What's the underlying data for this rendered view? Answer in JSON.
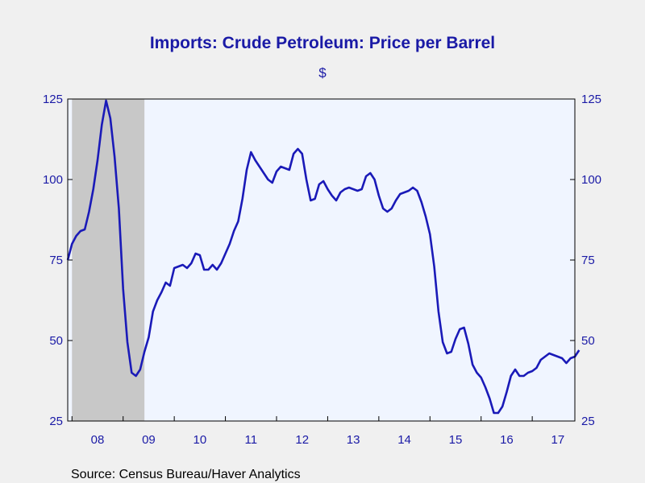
{
  "chart_data": {
    "type": "line",
    "title": "Imports: Crude Petroleum: Price per Barrel",
    "subtitle": "$",
    "source": "Source:  Census Bureau/Haver Analytics",
    "xlabel": "",
    "ylabel": "",
    "ylim": [
      25,
      125
    ],
    "yticks": [
      25,
      50,
      75,
      100,
      125
    ],
    "xlim": [
      "2007-12",
      "2017-11"
    ],
    "xticks": [
      {
        "label": "08",
        "x": "2008-07"
      },
      {
        "label": "09",
        "x": "2009-07"
      },
      {
        "label": "10",
        "x": "2010-07"
      },
      {
        "label": "11",
        "x": "2011-07"
      },
      {
        "label": "12",
        "x": "2012-07"
      },
      {
        "label": "13",
        "x": "2013-07"
      },
      {
        "label": "14",
        "x": "2014-07"
      },
      {
        "label": "15",
        "x": "2015-07"
      },
      {
        "label": "16",
        "x": "2016-07"
      },
      {
        "label": "17",
        "x": "2017-07"
      }
    ],
    "grid": false,
    "recession_shading": {
      "start": "2008-01",
      "end": "2009-06",
      "color": "#c8c8c8"
    },
    "colors": {
      "line": "#1a1ab8",
      "plot_bg": "#f0f5ff",
      "text": "#1a1aa6",
      "axis": "#000000"
    },
    "series": [
      {
        "start": "2007-12",
        "frequency": "monthly",
        "values": [
          75.0,
          80.0,
          82.5,
          84.0,
          84.5,
          90.0,
          97.0,
          106.0,
          117.0,
          124.5,
          119.0,
          107.0,
          91.0,
          66.0,
          49.5,
          40.0,
          39.0,
          41.0,
          46.5,
          51.0,
          59.0,
          62.5,
          65.0,
          68.0,
          67.0,
          72.5,
          73.0,
          73.5,
          72.5,
          74.0,
          77.0,
          76.5,
          72.0,
          72.0,
          73.5,
          72.0,
          74.0,
          77.0,
          80.0,
          84.0,
          87.0,
          94.0,
          103.0,
          108.5,
          106.0,
          104.0,
          102.0,
          100.0,
          99.0,
          102.5,
          104.0,
          103.5,
          103.0,
          108.0,
          109.5,
          108.0,
          100.0,
          93.5,
          94.0,
          98.5,
          99.5,
          97.0,
          95.0,
          93.5,
          96.0,
          97.0,
          97.5,
          97.0,
          96.5,
          97.0,
          101.0,
          102.0,
          100.0,
          95.0,
          91.0,
          90.0,
          91.0,
          93.5,
          95.5,
          96.0,
          96.5,
          97.5,
          96.5,
          93.0,
          88.5,
          83.0,
          73.0,
          59.0,
          49.5,
          46.0,
          46.5,
          50.5,
          53.5,
          54.0,
          49.0,
          42.5,
          40.0,
          38.5,
          35.5,
          32.0,
          27.5,
          27.5,
          29.5,
          34.0,
          39.0,
          41.0,
          39.0,
          39.0,
          40.0,
          40.5,
          41.5,
          44.0,
          45.0,
          46.0,
          45.5,
          45.0,
          44.5,
          43.0,
          44.5,
          45.0,
          47.0
        ]
      }
    ]
  }
}
